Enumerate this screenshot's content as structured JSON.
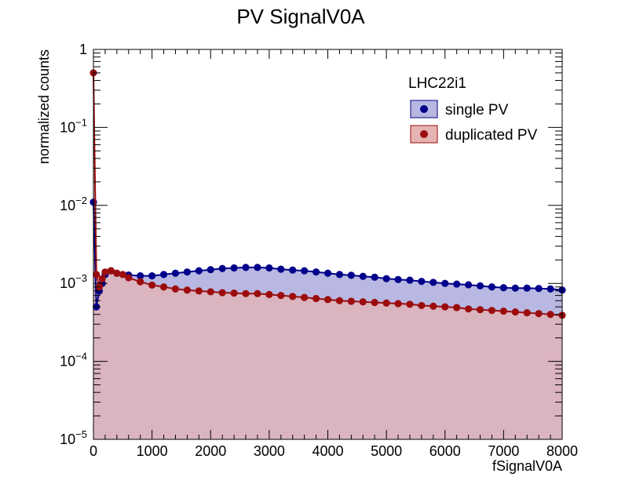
{
  "chart_data": {
    "type": "scatter",
    "title": "PV SignalV0A",
    "xlabel": "fSignalV0A",
    "ylabel": "normalized counts",
    "xlim": [
      0,
      8000
    ],
    "ylim": [
      1e-05,
      1
    ],
    "yscale": "log",
    "x_ticks": [
      0,
      1000,
      2000,
      3000,
      4000,
      5000,
      6000,
      7000,
      8000
    ],
    "x_tick_labels": [
      "0",
      "1000",
      "2000",
      "3000",
      "4000",
      "5000",
      "6000",
      "7000",
      "8000"
    ],
    "y_ticks": [
      {
        "value": 1,
        "base": "1",
        "exp": ""
      },
      {
        "value": 0.1,
        "base": "10",
        "exp": "−1"
      },
      {
        "value": 0.01,
        "base": "10",
        "exp": "−2"
      },
      {
        "value": 0.001,
        "base": "10",
        "exp": "−3"
      },
      {
        "value": 0.0001,
        "base": "10",
        "exp": "−4"
      },
      {
        "value": 1e-05,
        "base": "10",
        "exp": "−5"
      }
    ],
    "legend_header": "LHC22i1",
    "legend_position": "top-right",
    "grid": false,
    "series": [
      {
        "name": "single PV",
        "color": "#00008b",
        "fill": "#b8b8e2",
        "x": [
          0,
          50,
          100,
          150,
          200,
          300,
          400,
          600,
          800,
          1000,
          1200,
          1400,
          1600,
          1800,
          2000,
          2200,
          2400,
          2600,
          2800,
          3000,
          3200,
          3400,
          3600,
          3800,
          4000,
          4200,
          4400,
          4600,
          4800,
          5000,
          5200,
          5400,
          5600,
          5800,
          6000,
          6200,
          6400,
          6600,
          6800,
          7000,
          7200,
          7400,
          7600,
          7800,
          8000
        ],
        "y": [
          0.011,
          0.0005,
          0.0008,
          0.001,
          0.0013,
          0.00145,
          0.00135,
          0.00128,
          0.00125,
          0.00125,
          0.0013,
          0.00135,
          0.0014,
          0.00145,
          0.0015,
          0.00155,
          0.00158,
          0.0016,
          0.0016,
          0.00158,
          0.00152,
          0.00148,
          0.00145,
          0.0014,
          0.00135,
          0.0013,
          0.00127,
          0.00123,
          0.0012,
          0.00115,
          0.00112,
          0.0011,
          0.00106,
          0.00103,
          0.001,
          0.00098,
          0.00096,
          0.00093,
          0.0009,
          0.00088,
          0.00087,
          0.00087,
          0.00086,
          0.00085,
          0.00082
        ]
      },
      {
        "name": "duplicated PV",
        "color": "#9b0d0d",
        "fill": "#e6b3b3",
        "x": [
          0,
          50,
          100,
          150,
          200,
          300,
          400,
          500,
          600,
          800,
          1000,
          1200,
          1400,
          1600,
          1800,
          2000,
          2200,
          2400,
          2600,
          2800,
          3000,
          3200,
          3400,
          3600,
          3800,
          4000,
          4200,
          4400,
          4600,
          4800,
          5000,
          5200,
          5400,
          5600,
          5800,
          6000,
          6200,
          6400,
          6600,
          6800,
          7000,
          7200,
          7400,
          7600,
          7800,
          8000
        ],
        "y": [
          0.5,
          0.0013,
          0.0009,
          0.00115,
          0.0014,
          0.00145,
          0.00135,
          0.0013,
          0.00118,
          0.00105,
          0.00095,
          0.0009,
          0.00085,
          0.00082,
          0.0008,
          0.00078,
          0.00076,
          0.00075,
          0.00074,
          0.00074,
          0.00072,
          0.0007,
          0.00068,
          0.00066,
          0.00064,
          0.00062,
          0.0006,
          0.00059,
          0.00058,
          0.00057,
          0.00056,
          0.00055,
          0.00054,
          0.00052,
          0.00051,
          0.0005,
          0.00049,
          0.00047,
          0.00046,
          0.00045,
          0.00044,
          0.00043,
          0.00042,
          0.00041,
          0.0004,
          0.00039
        ]
      }
    ]
  }
}
